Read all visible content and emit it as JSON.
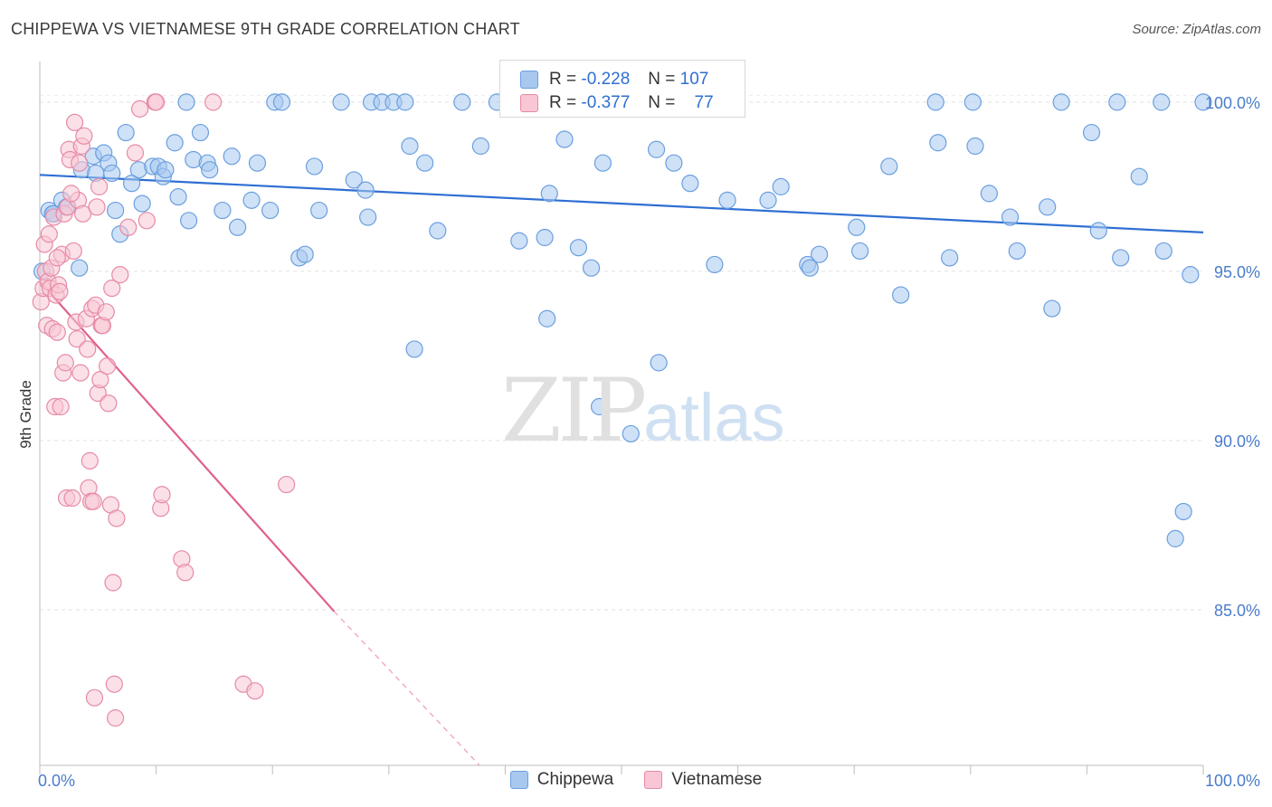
{
  "header": {
    "title": "CHIPPEWA VS VIETNAMESE 9TH GRADE CORRELATION CHART",
    "source": "Source: ZipAtlas.com"
  },
  "watermark": {
    "zip": "ZIP",
    "atlas": "atlas"
  },
  "stats": {
    "rows": [
      {
        "r_label": "R =",
        "r_value": "-0.228",
        "n_label": "N =",
        "n_value": "107",
        "color": "#a8c8f0"
      },
      {
        "r_label": "R =",
        "r_value": "-0.377",
        "n_label": "N =",
        "n_value": "77",
        "color": "#f4b8c8"
      }
    ]
  },
  "legend": [
    {
      "label": "Chippewa",
      "color": "#a8c8f0",
      "stroke": "#6a9fde"
    },
    {
      "label": "Vietnamese",
      "color": "#f8c6d4",
      "stroke": "#e68aa6"
    }
  ],
  "chart_data": {
    "type": "scatter",
    "title": "CHIPPEWA VS VIETNAMESE 9TH GRADE CORRELATION CHART",
    "xlabel": "",
    "ylabel": "9th Grade",
    "xlim": [
      0,
      100
    ],
    "ylim": [
      80.4,
      101.2
    ],
    "x_tick_labels": [
      {
        "x": 0,
        "label": "0.0%"
      },
      {
        "x": 100,
        "label": "100.0%"
      }
    ],
    "y_tick_labels": [
      {
        "y": 100,
        "label": "100.0%"
      },
      {
        "y": 95,
        "label": "95.0%"
      },
      {
        "y": 90,
        "label": "90.0%"
      },
      {
        "y": 85,
        "label": "85.0%"
      }
    ],
    "grid": true,
    "series": [
      {
        "name": "Chippewa",
        "color": "#6a9fde",
        "fill": "#a8c8f0",
        "trend": {
          "x": [
            0,
            100
          ],
          "y": [
            97.85,
            96.15
          ],
          "style": "solid",
          "color": "#2e6fd2"
        },
        "points": [
          [
            0.2,
            95.0
          ],
          [
            0.8,
            96.8
          ],
          [
            1.2,
            96.7
          ],
          [
            1.9,
            97.1
          ],
          [
            2.3,
            96.9
          ],
          [
            3.4,
            95.1
          ],
          [
            3.6,
            98.0
          ],
          [
            4.6,
            98.4
          ],
          [
            4.8,
            97.9
          ],
          [
            5.5,
            98.5
          ],
          [
            5.9,
            98.2
          ],
          [
            6.5,
            96.8
          ],
          [
            6.9,
            96.1
          ],
          [
            7.4,
            99.1
          ],
          [
            7.9,
            97.6
          ],
          [
            8.5,
            98.0
          ],
          [
            8.8,
            97.0
          ],
          [
            9.7,
            98.1
          ],
          [
            10.2,
            98.1
          ],
          [
            10.6,
            97.8
          ],
          [
            10.8,
            98.0
          ],
          [
            11.6,
            98.8
          ],
          [
            11.9,
            97.2
          ],
          [
            12.6,
            100.0
          ],
          [
            12.8,
            96.5
          ],
          [
            13.2,
            98.3
          ],
          [
            13.8,
            99.1
          ],
          [
            14.4,
            98.2
          ],
          [
            14.6,
            98.0
          ],
          [
            15.7,
            96.8
          ],
          [
            16.5,
            98.4
          ],
          [
            17.0,
            96.3
          ],
          [
            18.2,
            97.1
          ],
          [
            18.7,
            98.2
          ],
          [
            19.8,
            96.8
          ],
          [
            20.2,
            100.0
          ],
          [
            20.8,
            100.0
          ],
          [
            22.3,
            95.4
          ],
          [
            22.8,
            95.5
          ],
          [
            23.6,
            98.1
          ],
          [
            24.0,
            96.8
          ],
          [
            25.9,
            100.0
          ],
          [
            27.0,
            97.7
          ],
          [
            28.0,
            97.4
          ],
          [
            28.2,
            96.6
          ],
          [
            28.5,
            100.0
          ],
          [
            29.4,
            100.0
          ],
          [
            30.4,
            100.0
          ],
          [
            31.4,
            100.0
          ],
          [
            31.8,
            98.7
          ],
          [
            32.2,
            92.7
          ],
          [
            33.1,
            98.2
          ],
          [
            34.2,
            96.2
          ],
          [
            36.3,
            100.0
          ],
          [
            37.9,
            98.7
          ],
          [
            39.3,
            100.0
          ],
          [
            41.2,
            95.9
          ],
          [
            42.5,
            100.0
          ],
          [
            43.4,
            96.0
          ],
          [
            43.6,
            93.6
          ],
          [
            43.8,
            97.3
          ],
          [
            45.1,
            98.9
          ],
          [
            46.3,
            95.7
          ],
          [
            47.4,
            95.1
          ],
          [
            48.1,
            91.0
          ],
          [
            48.4,
            98.2
          ],
          [
            50.8,
            90.2
          ],
          [
            53.0,
            98.6
          ],
          [
            53.2,
            92.3
          ],
          [
            54.0,
            100.0
          ],
          [
            54.5,
            98.2
          ],
          [
            55.9,
            97.6
          ],
          [
            58.0,
            95.2
          ],
          [
            59.1,
            97.1
          ],
          [
            62.6,
            97.1
          ],
          [
            63.7,
            97.5
          ],
          [
            66.0,
            95.2
          ],
          [
            66.2,
            95.1
          ],
          [
            67.0,
            95.5
          ],
          [
            70.2,
            96.3
          ],
          [
            70.5,
            95.6
          ],
          [
            73.0,
            98.1
          ],
          [
            74.0,
            94.3
          ],
          [
            77.0,
            100.0
          ],
          [
            77.2,
            98.8
          ],
          [
            78.2,
            95.4
          ],
          [
            80.2,
            100.0
          ],
          [
            80.4,
            98.7
          ],
          [
            81.6,
            97.3
          ],
          [
            83.4,
            96.6
          ],
          [
            84.0,
            95.6
          ],
          [
            86.6,
            96.9
          ],
          [
            87.0,
            93.9
          ],
          [
            87.8,
            100.0
          ],
          [
            90.4,
            99.1
          ],
          [
            91.0,
            96.2
          ],
          [
            92.6,
            100.0
          ],
          [
            92.9,
            95.4
          ],
          [
            94.5,
            97.8
          ],
          [
            96.4,
            100.0
          ],
          [
            96.6,
            95.6
          ],
          [
            97.6,
            87.1
          ],
          [
            98.3,
            87.9
          ],
          [
            98.9,
            94.9
          ],
          [
            100.0,
            100.0
          ],
          [
            1.1,
            96.7
          ],
          [
            6.2,
            97.9
          ]
        ]
      },
      {
        "name": "Vietnamese",
        "color": "#e68aa6",
        "fill": "#f8c6d4",
        "trend": {
          "x": [
            0,
            25.3
          ],
          "y": [
            94.7,
            84.95
          ],
          "style": "solid",
          "color": "#e0608c"
        },
        "trend_extension": {
          "x": [
            25.3,
            37.8
          ],
          "y": [
            84.95,
            80.4
          ],
          "style": "dashed",
          "color": "#f0a8bc"
        },
        "points": [
          [
            0.1,
            94.1
          ],
          [
            0.3,
            94.5
          ],
          [
            0.4,
            95.8
          ],
          [
            0.5,
            95.0
          ],
          [
            0.6,
            93.4
          ],
          [
            0.7,
            94.7
          ],
          [
            0.9,
            94.5
          ],
          [
            1.0,
            95.1
          ],
          [
            1.1,
            93.3
          ],
          [
            1.2,
            96.6
          ],
          [
            1.3,
            91.0
          ],
          [
            1.4,
            94.3
          ],
          [
            1.5,
            93.2
          ],
          [
            1.6,
            94.6
          ],
          [
            1.7,
            94.4
          ],
          [
            1.8,
            91.0
          ],
          [
            1.9,
            95.5
          ],
          [
            2.0,
            92.0
          ],
          [
            2.1,
            96.7
          ],
          [
            2.2,
            92.3
          ],
          [
            2.3,
            88.3
          ],
          [
            2.4,
            96.9
          ],
          [
            2.5,
            98.6
          ],
          [
            2.6,
            98.3
          ],
          [
            2.8,
            88.3
          ],
          [
            2.9,
            95.6
          ],
          [
            3.0,
            99.4
          ],
          [
            3.1,
            93.5
          ],
          [
            3.2,
            93.0
          ],
          [
            3.3,
            97.1
          ],
          [
            3.4,
            98.2
          ],
          [
            3.5,
            92.0
          ],
          [
            3.6,
            98.7
          ],
          [
            3.7,
            96.7
          ],
          [
            3.8,
            99.0
          ],
          [
            4.0,
            93.6
          ],
          [
            4.1,
            92.7
          ],
          [
            4.2,
            88.6
          ],
          [
            4.3,
            89.4
          ],
          [
            4.4,
            88.2
          ],
          [
            4.5,
            93.9
          ],
          [
            4.6,
            88.2
          ],
          [
            4.7,
            82.4
          ],
          [
            4.8,
            94.0
          ],
          [
            5.0,
            91.4
          ],
          [
            5.1,
            97.5
          ],
          [
            5.2,
            91.8
          ],
          [
            5.3,
            93.4
          ],
          [
            5.4,
            93.4
          ],
          [
            5.7,
            93.8
          ],
          [
            5.8,
            92.2
          ],
          [
            5.9,
            91.1
          ],
          [
            6.1,
            88.1
          ],
          [
            6.2,
            94.5
          ],
          [
            6.3,
            85.8
          ],
          [
            6.4,
            82.8
          ],
          [
            6.5,
            81.8
          ],
          [
            6.6,
            87.7
          ],
          [
            6.9,
            94.9
          ],
          [
            7.6,
            96.3
          ],
          [
            8.2,
            98.5
          ],
          [
            8.6,
            99.8
          ],
          [
            9.2,
            96.5
          ],
          [
            9.9,
            100.0
          ],
          [
            10.0,
            100.0
          ],
          [
            10.4,
            88.0
          ],
          [
            10.5,
            88.4
          ],
          [
            12.2,
            86.5
          ],
          [
            12.5,
            86.1
          ],
          [
            14.9,
            100.0
          ],
          [
            17.5,
            82.8
          ],
          [
            18.5,
            82.6
          ],
          [
            21.2,
            88.7
          ],
          [
            0.8,
            96.1
          ],
          [
            2.7,
            97.3
          ],
          [
            4.9,
            96.9
          ],
          [
            1.5,
            95.4
          ]
        ]
      }
    ]
  }
}
